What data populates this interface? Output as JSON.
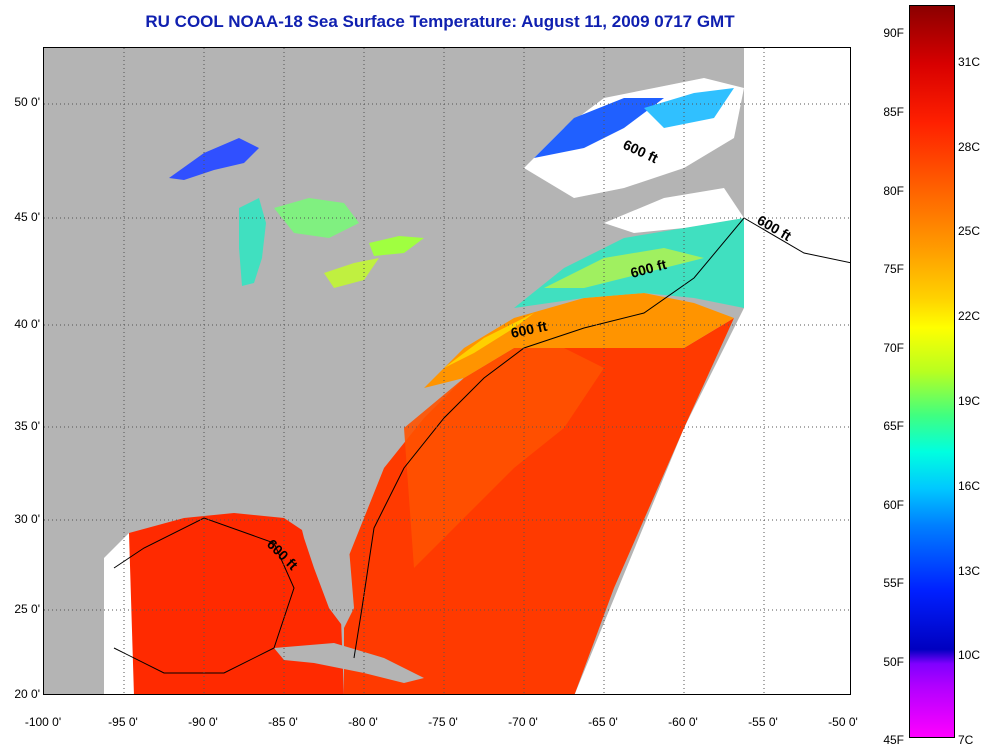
{
  "title": "RU COOL  NOAA-18  Sea Surface Temperature:  August 11, 2009 0717 GMT",
  "map": {
    "lat_labels": [
      "50 0'",
      "45 0'",
      "40 0'",
      "35 0'",
      "30 0'",
      "25 0'",
      "20 0'"
    ],
    "lon_labels": [
      "-100 0'",
      "-95 0'",
      "-90 0'",
      "-85 0'",
      "-80 0'",
      "-75 0'",
      "-70 0'",
      "-65 0'",
      "-60 0'",
      "-55 0'",
      "-50 0'"
    ],
    "contour_labels": [
      "600 ft",
      "600 ft",
      "600 ft",
      "600 ft",
      "600 ft"
    ],
    "colors": {
      "land": "#b4b4b4",
      "no_data": "#ffffff",
      "warm": "#ff3000",
      "mid": "#ff9a00",
      "cool": "#00e0d0",
      "cold": "#2040ff"
    }
  },
  "colorbar": {
    "fahrenheit": [
      "90F",
      "85F",
      "80F",
      "75F",
      "70F",
      "65F",
      "60F",
      "55F",
      "50F",
      "45F"
    ],
    "celsius": [
      "31C",
      "28C",
      "25C",
      "22C",
      "19C",
      "16C",
      "13C",
      "10C",
      "7C"
    ]
  }
}
